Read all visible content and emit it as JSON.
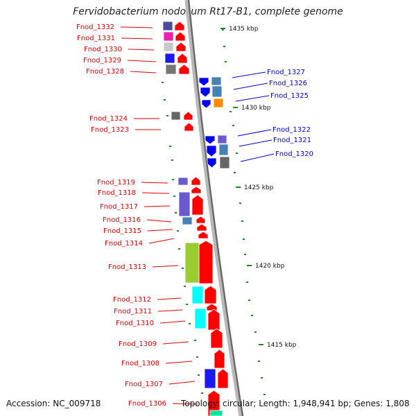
{
  "title": "Fervidobacterium nodosum Rt17-B1, complete genome",
  "footer": {
    "accession": "Accession: NC_009718",
    "summary": "Topology: circular; Length: 1,948,941 bp; Genes: 1,808"
  },
  "colors": {
    "forward_strand": "#ff0000",
    "reverse_strand": "#0000ee",
    "left_label": "#dd0000",
    "right_label": "#0000cc",
    "backbone": "#888888",
    "tick_marks": "#228822"
  },
  "position_ticks": [
    "1435 kbp",
    "1430 kbp",
    "1425 kbp",
    "1420 kbp",
    "1415 kbp"
  ],
  "genes": [
    {
      "id": "Fnod_1332",
      "strand": "+",
      "side": "left",
      "cog_color": "#4b4b9c"
    },
    {
      "id": "Fnod_1331",
      "strand": "+",
      "side": "left",
      "cog_color": "#ee22aa"
    },
    {
      "id": "Fnod_1330",
      "strand": "+",
      "side": "left",
      "cog_color": "#c8c8c8"
    },
    {
      "id": "Fnod_1329",
      "strand": "+",
      "side": "left",
      "cog_color": "#1a1aee"
    },
    {
      "id": "Fnod_1328",
      "strand": "+",
      "side": "left",
      "cog_color": "#777777"
    },
    {
      "id": "Fnod_1327",
      "strand": "-",
      "side": "right",
      "cog_color": "#4682b4"
    },
    {
      "id": "Fnod_1326",
      "strand": "-",
      "side": "right",
      "cog_color": "#4682b4"
    },
    {
      "id": "Fnod_1325",
      "strand": "-",
      "side": "right",
      "cog_color": "#ff8c00"
    },
    {
      "id": "Fnod_1324",
      "strand": "+",
      "side": "left",
      "cog_color": "#666666"
    },
    {
      "id": "Fnod_1323",
      "strand": "+",
      "side": "left",
      "cog_color": ""
    },
    {
      "id": "Fnod_1322",
      "strand": "-",
      "side": "right",
      "cog_color": "#6a5acd"
    },
    {
      "id": "Fnod_1321",
      "strand": "-",
      "side": "right",
      "cog_color": "#4682b4"
    },
    {
      "id": "Fnod_1320",
      "strand": "-",
      "side": "right",
      "cog_color": "#666666"
    },
    {
      "id": "Fnod_1319",
      "strand": "+",
      "side": "left",
      "cog_color": "#6a5acd"
    },
    {
      "id": "Fnod_1318",
      "strand": "+",
      "side": "left",
      "cog_color": "#6a5acd"
    },
    {
      "id": "Fnod_1317",
      "strand": "+",
      "side": "left",
      "cog_color": "#6a5acd"
    },
    {
      "id": "Fnod_1316",
      "strand": "+",
      "side": "left",
      "cog_color": "#4682b4"
    },
    {
      "id": "Fnod_1315",
      "strand": "+",
      "side": "left",
      "cog_color": ""
    },
    {
      "id": "Fnod_1314",
      "strand": "+",
      "side": "left",
      "cog_color": ""
    },
    {
      "id": "Fnod_1313",
      "strand": "+",
      "side": "left",
      "cog_color": "#9acd32"
    },
    {
      "id": "Fnod_1312",
      "strand": "+",
      "side": "left",
      "cog_color": "#00ffff"
    },
    {
      "id": "Fnod_1311",
      "strand": "+",
      "side": "left",
      "cog_color": ""
    },
    {
      "id": "Fnod_1310",
      "strand": "+",
      "side": "left",
      "cog_color": "#00ffff"
    },
    {
      "id": "Fnod_1309",
      "strand": "+",
      "side": "left",
      "cog_color": ""
    },
    {
      "id": "Fnod_1308",
      "strand": "+",
      "side": "left",
      "cog_color": ""
    },
    {
      "id": "Fnod_1307",
      "strand": "+",
      "side": "left",
      "cog_color": "#1a1aee"
    },
    {
      "id": "Fnod_1306",
      "strand": "+",
      "side": "left",
      "cog_color": "#00e5a0"
    }
  ]
}
